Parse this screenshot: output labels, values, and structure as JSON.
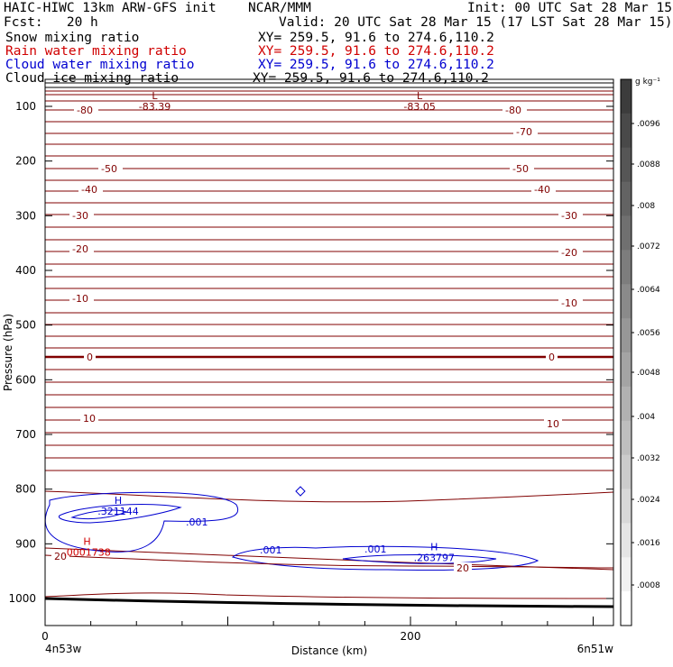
{
  "header": {
    "title": "HAIC-HIWC 13km ARW-GFS init",
    "org": "NCAR/MMM",
    "init": "Init: 00 UTC Sat 28 Mar 15",
    "fcst": "Fcst:   20 h",
    "valid": "Valid: 20 UTC Sat 28 Mar 15 (17 LST Sat 28 Mar 15)",
    "fields": [
      {
        "name": "Snow mixing ratio",
        "xy": "XY= 259.5, 91.6 to 274.6,110.2",
        "color": "#000000"
      },
      {
        "name": "Rain water mixing ratio",
        "xy": "XY= 259.5, 91.6 to 274.6,110.2",
        "color": "#d00000"
      },
      {
        "name": "Cloud water mixing ratio",
        "xy": "XY= 259.5, 91.6 to 274.6,110.2",
        "color": "#0000d0"
      },
      {
        "name": "Cloud ice mixing ratio",
        "xy": "XY= 259.5, 91.6 to 274.6,110.2",
        "color": "#000000"
      }
    ]
  },
  "chart_data": {
    "type": "contour",
    "xlabel": "Distance (km)",
    "ylabel": "Pressure (hPa)",
    "xlim": [
      0,
      310
    ],
    "ylim": [
      1040,
      65
    ],
    "x_ticks": [
      "0",
      "200"
    ],
    "x_tick_values": [
      0,
      200
    ],
    "y_ticks": [
      "100",
      "200",
      "300",
      "400",
      "500",
      "600",
      "700",
      "800",
      "900",
      "1000"
    ],
    "y_tick_values": [
      100,
      200,
      300,
      400,
      500,
      600,
      700,
      800,
      900,
      1000
    ],
    "endpoints": {
      "left": "4n53w",
      "right": "6n51w"
    },
    "colorbar": {
      "unit": "g kg⁻¹",
      "labels": [
        ".0096",
        ".0088",
        ".008",
        ".0072",
        ".0064",
        ".0056",
        ".0048",
        ".004",
        ".0032",
        ".0024",
        ".0016",
        ".0008"
      ]
    },
    "temperature_isotherms": {
      "color": "#800000",
      "labels": [
        "-80",
        "-70",
        "-50",
        "-40",
        "-30",
        "-20",
        "-10",
        "0",
        "10",
        "20"
      ],
      "label_values": [
        -80,
        -70,
        -50,
        -40,
        -30,
        -20,
        -10,
        0,
        10,
        20
      ]
    },
    "extrema": [
      {
        "type": "L",
        "value": "-83.39",
        "x": 60,
        "p": 100
      },
      {
        "type": "L",
        "value": "-83.05",
        "x": 205,
        "p": 100
      },
      {
        "type": "H",
        "value": ".321144",
        "x": 40,
        "p": 840,
        "color": "#0000d0"
      },
      {
        "type": "H",
        "value": ".263797",
        "x": 213,
        "p": 925,
        "color": "#0000d0"
      },
      {
        "type": "H",
        "value": ".0001738",
        "x": 23,
        "p": 915,
        "color": "#d00000"
      }
    ],
    "cloud_water_contour_labels": [
      ".001",
      ".001",
      ".001"
    ],
    "rain_contour_labels": [
      "20",
      "20"
    ]
  }
}
